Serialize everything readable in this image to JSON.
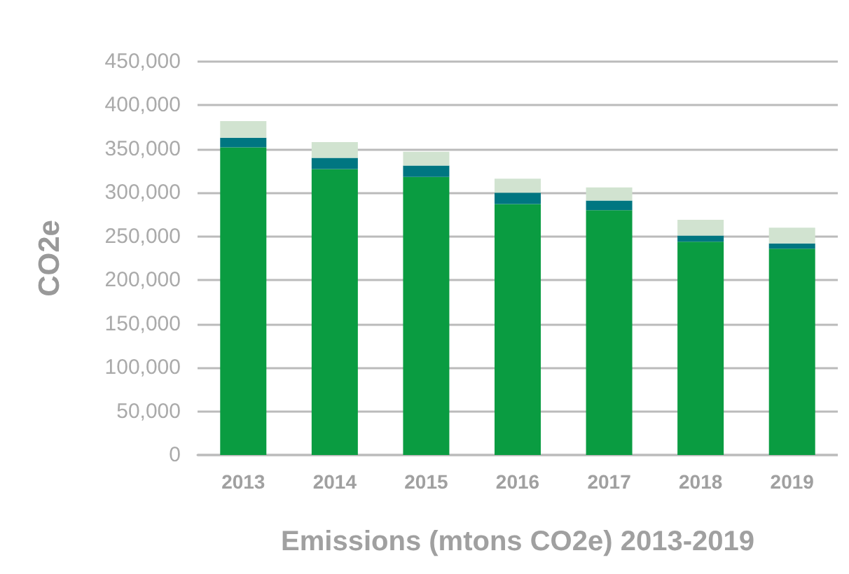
{
  "chart_data": {
    "type": "bar",
    "stacked": true,
    "xlabel": "Emissions (mtons CO2e) 2013-2019",
    "ylabel": "CO2e",
    "categories": [
      "2013",
      "2014",
      "2015",
      "2016",
      "2017",
      "2018",
      "2019"
    ],
    "series": [
      {
        "color": "#0a9c41",
        "values": [
          352000,
          327000,
          318000,
          287000,
          280000,
          244000,
          236000
        ]
      },
      {
        "color": "#007681",
        "values": [
          11000,
          13000,
          13000,
          13000,
          11000,
          7000,
          6000
        ]
      },
      {
        "color": "#d1e3d0",
        "values": [
          19000,
          18000,
          16000,
          16000,
          15000,
          18000,
          18000
        ]
      }
    ],
    "ylim": [
      0,
      450000
    ],
    "yticks": [
      0,
      {
        "value": 50000,
        "label": "50,000"
      },
      {
        "value": 100000,
        "label": "100,000"
      },
      {
        "value": 150000,
        "label": "150,000"
      },
      {
        "value": 200000,
        "label": "200,000"
      },
      {
        "value": 250000,
        "label": "250,000"
      },
      {
        "value": 300000,
        "label": "300,000"
      },
      {
        "value": 350000,
        "label": "350,000"
      },
      {
        "value": 400000,
        "label": "400,000"
      },
      {
        "value": 450000,
        "label": "450,000"
      }
    ],
    "grid": "y"
  }
}
